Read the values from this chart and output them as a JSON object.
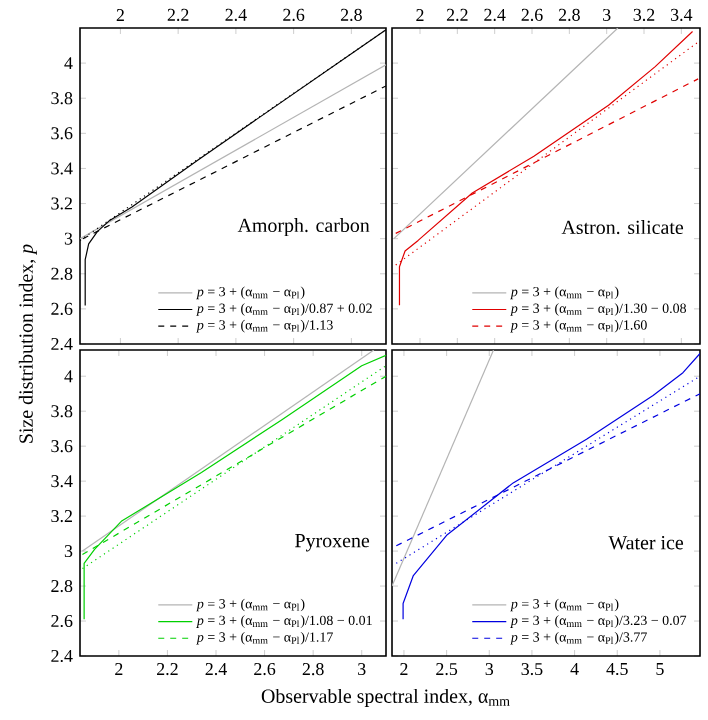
{
  "chart_data": [
    {
      "type": "line",
      "ylabel": "Size distribution index, *p*",
      "xlim": [
        1.86,
        2.92
      ],
      "ylim": [
        2.4,
        4.2
      ],
      "xticks": [
        2,
        2.2,
        2.4,
        2.6,
        2.8
      ],
      "yticks": [
        2.4,
        2.6,
        2.8,
        3,
        3.2,
        3.4,
        3.6,
        3.8,
        4
      ],
      "legend": "bottom right",
      "annotations": [
        "Amorph. carbon"
      ],
      "series": [
        {
          "name": "*p* = 3 + (α$_{mm}$ − α$_{Pl}$)",
          "color": "#b4b4b4",
          "line_style": "solid",
          "x": [
            1.86,
            2.92
          ],
          "values": [
            3.0,
            3.99
          ]
        },
        {
          "name": "*p* = 3 + (α$_{mm}$ − α$_{Pl}$)/0.87 + 0.02",
          "color": "#000000",
          "line_style": "solid",
          "x": [
            1.878,
            1.878,
            1.89,
            1.92,
            1.96,
            2.04,
            2.27,
            2.92
          ],
          "values": [
            2.62,
            2.88,
            2.97,
            3.04,
            3.1,
            3.18,
            3.45,
            4.19
          ]
        },
        {
          "name": "*p* = 3 + (α$_{mm}$ − α$_{Pl}$)/1.13",
          "color": "#000000",
          "line_style": "dashed",
          "x": [
            1.87,
            2.92
          ],
          "values": [
            3.0,
            3.87
          ]
        },
        {
          "color": "#000000",
          "line_style": "dotted",
          "x": [
            1.86,
            2.92
          ],
          "values": [
            2.99,
            4.19
          ]
        }
      ]
    },
    {
      "type": "line",
      "xlim": [
        1.85,
        3.5
      ],
      "ylim": [
        2.4,
        4.2
      ],
      "xticks": [
        2,
        2.2,
        2.4,
        2.6,
        2.8,
        3,
        3.2,
        3.4
      ],
      "yticks": [
        2.4,
        2.6,
        2.8,
        3,
        3.2,
        3.4,
        3.6,
        3.8,
        4
      ],
      "tick_labels": "x",
      "legend": "bottom right",
      "annotations": [
        "Astron. silicate"
      ],
      "series": [
        {
          "name": "*p* = 3 + (α$_{mm}$ − α$_{Pl}$)",
          "color": "#b4b4b4",
          "line_style": "solid",
          "x": [
            1.86,
            3.06
          ],
          "values": [
            3.0,
            4.2
          ]
        },
        {
          "name": "*p* = 3 + (α$_{mm}$ − α$_{Pl}$)/1.30 − 0.08",
          "color": "#e00000",
          "line_style": "solid",
          "x": [
            1.89,
            1.89,
            1.92,
            1.99,
            2.28,
            2.61,
            3.01,
            3.26,
            3.46
          ],
          "values": [
            2.62,
            2.84,
            2.93,
            2.99,
            3.26,
            3.47,
            3.76,
            3.98,
            4.18
          ]
        },
        {
          "name": "*p* = 3 + (α$_{mm}$ − α$_{Pl}$)/1.60",
          "color": "#e00000",
          "line_style": "dashed",
          "x": [
            1.87,
            3.49
          ],
          "values": [
            3.03,
            3.91
          ]
        },
        {
          "color": "#e00000",
          "line_style": "dotted",
          "x": [
            1.87,
            3.49
          ],
          "values": [
            2.85,
            4.12
          ]
        }
      ]
    },
    {
      "type": "line",
      "xlabel": "Observable spectral index, α$_{mm}$",
      "xlim": [
        1.84,
        3.1
      ],
      "ylim": [
        2.4,
        4.15
      ],
      "xticks": [
        2,
        2.2,
        2.4,
        2.6,
        2.8,
        3
      ],
      "yticks": [
        2.4,
        2.6,
        2.8,
        3,
        3.2,
        3.4,
        3.6,
        3.8,
        4
      ],
      "legend": "bottom right",
      "annotations": [
        "Pyroxene"
      ],
      "series": [
        {
          "name": "*p* = 3 + (α$_{mm}$ − α$_{Pl}$)",
          "color": "#b4b4b4",
          "line_style": "solid",
          "x": [
            1.85,
            3.05
          ],
          "values": [
            3.0,
            4.15
          ]
        },
        {
          "name": "*p* = 3 + (α$_{mm}$ − α$_{Pl}$)/1.08 − 0.01",
          "color": "#00d000",
          "line_style": "solid",
          "x": [
            1.857,
            1.857,
            1.9,
            2.01,
            2.34,
            2.67,
            3.0,
            3.1
          ],
          "values": [
            2.61,
            2.93,
            3.01,
            3.17,
            3.45,
            3.75,
            4.06,
            4.12
          ]
        },
        {
          "name": "*p* = 3 + (α$_{mm}$ − α$_{Pl}$)/1.17",
          "color": "#00d000",
          "line_style": "dashed",
          "x": [
            1.85,
            3.1
          ],
          "values": [
            2.98,
            4.0
          ]
        },
        {
          "color": "#00d000",
          "line_style": "dotted",
          "x": [
            1.85,
            3.1
          ],
          "values": [
            2.9,
            4.06
          ]
        }
      ]
    },
    {
      "type": "line",
      "xlim": [
        1.86,
        5.47
      ],
      "ylim": [
        2.4,
        4.15
      ],
      "xticks": [
        2,
        2.5,
        3,
        3.5,
        4,
        4.5,
        5
      ],
      "yticks": [
        2.4,
        2.6,
        2.8,
        3,
        3.2,
        3.4,
        3.6,
        3.8,
        4
      ],
      "tick_labels": "x",
      "legend": "bottom right",
      "annotations": [
        "Water ice"
      ],
      "series": [
        {
          "name": "*p* = 3 + (α$_{mm}$ − α$_{Pl}$)",
          "color": "#b4b4b4",
          "line_style": "solid",
          "x": [
            1.86,
            3.05
          ],
          "values": [
            2.8,
            4.15
          ]
        },
        {
          "name": "*p* = 3 + (α$_{mm}$ − α$_{Pl}$)/3.23 − 0.07",
          "color": "#0000e0",
          "line_style": "solid",
          "x": [
            1.99,
            1.99,
            2.11,
            2.5,
            3.28,
            4.14,
            4.92,
            5.27,
            5.47
          ],
          "values": [
            2.61,
            2.7,
            2.86,
            3.09,
            3.39,
            3.64,
            3.89,
            4.02,
            4.13
          ]
        },
        {
          "name": "*p* = 3 + (α$_{mm}$ − α$_{Pl}$)/3.77",
          "color": "#0000e0",
          "line_style": "dashed",
          "x": [
            1.91,
            5.47
          ],
          "values": [
            3.03,
            3.9
          ]
        },
        {
          "color": "#0000e0",
          "line_style": "dotted",
          "x": [
            1.91,
            5.47
          ],
          "values": [
            2.93,
            4.0
          ]
        }
      ]
    }
  ]
}
